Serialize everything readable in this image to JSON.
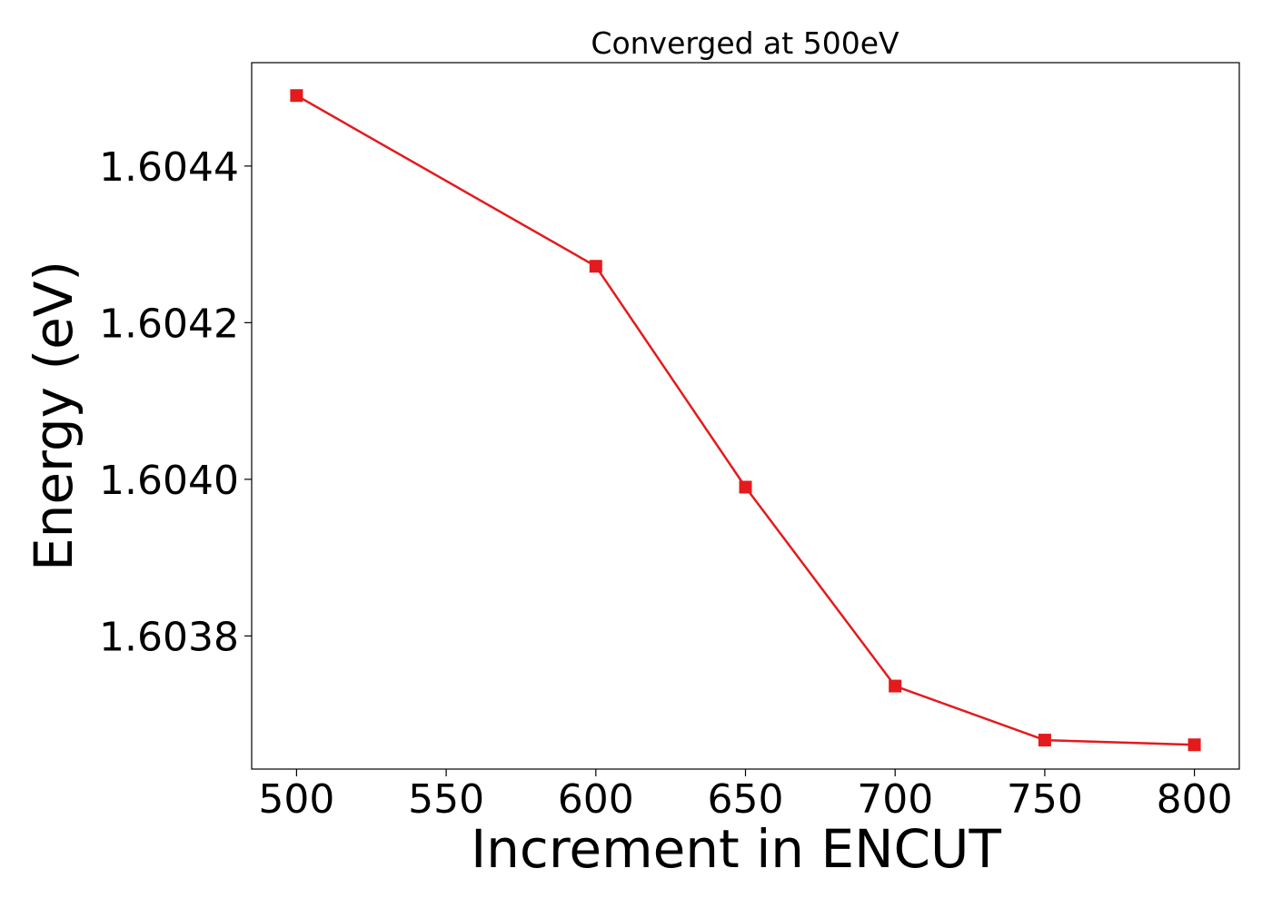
{
  "chart_data": {
    "type": "line",
    "title": "Converged at 500eV",
    "xlabel": "Increment in ENCUT",
    "ylabel": "Energy (eV)",
    "x": [
      500,
      600,
      650,
      700,
      750,
      800
    ],
    "series": [
      {
        "values": [
          1.60449,
          1.604272,
          1.60399,
          1.603736,
          1.603667,
          1.603661
        ],
        "color": "#e41a1c",
        "marker": "square"
      }
    ],
    "xlim": [
      485,
      815
    ],
    "ylim": [
      1.60363,
      1.604532
    ],
    "xticks": [
      500,
      550,
      600,
      650,
      700,
      750,
      800
    ],
    "xtick_labels": [
      "500",
      "550",
      "600",
      "650",
      "700",
      "750",
      "800"
    ],
    "yticks": [
      1.6038,
      1.604,
      1.6042,
      1.6044
    ],
    "ytick_labels": [
      "1.6038",
      "1.6040",
      "1.6042",
      "1.6044"
    ],
    "grid": false,
    "legend": "none"
  }
}
